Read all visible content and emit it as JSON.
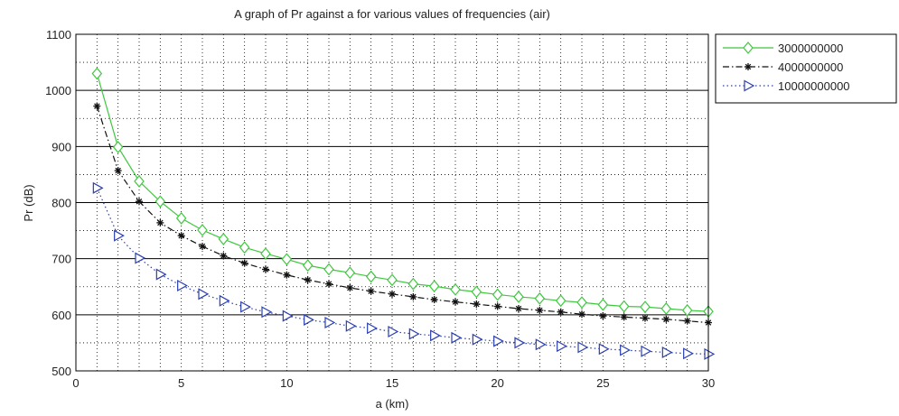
{
  "chart_data": {
    "type": "line",
    "title": "A graph of Pr against a for various values of frequencies (air)",
    "xlabel": "a (km)",
    "ylabel": "Pr (dB)",
    "xlim": [
      0,
      30
    ],
    "ylim": [
      500,
      1100
    ],
    "xticks": [
      0,
      5,
      10,
      15,
      20,
      25,
      30
    ],
    "yticks": [
      500,
      600,
      700,
      800,
      900,
      1000,
      1100
    ],
    "grid": true,
    "legend_position": "outside-top-right",
    "x": [
      1,
      2,
      3,
      4,
      5,
      6,
      7,
      8,
      9,
      10,
      11,
      12,
      13,
      14,
      15,
      16,
      17,
      18,
      19,
      20,
      21,
      22,
      23,
      24,
      25,
      26,
      27,
      28,
      29,
      30
    ],
    "series": [
      {
        "name": "3000000000",
        "color": "#3fc83f",
        "line_style": "solid",
        "marker": "diamond",
        "values": [
          1030,
          899,
          838,
          802,
          772,
          751,
          735,
          720,
          709,
          699,
          688,
          681,
          675,
          668,
          662,
          655,
          651,
          645,
          641,
          636,
          632,
          629,
          625,
          622,
          618,
          615,
          614,
          611,
          608,
          606
        ]
      },
      {
        "name": "4000000000",
        "color": "#111111",
        "line_style": "dashdot",
        "marker": "asterisk",
        "values": [
          972,
          857,
          802,
          764,
          741,
          722,
          705,
          692,
          681,
          671,
          662,
          655,
          648,
          642,
          637,
          632,
          627,
          623,
          619,
          615,
          611,
          608,
          605,
          601,
          598,
          596,
          594,
          592,
          589,
          586
        ]
      },
      {
        "name": "10000000000",
        "color": "#2b3fb0",
        "line_style": "dotted",
        "marker": "triangle-right",
        "values": [
          826,
          741,
          701,
          672,
          652,
          637,
          625,
          614,
          605,
          598,
          591,
          586,
          580,
          576,
          570,
          566,
          563,
          559,
          556,
          553,
          550,
          547,
          544,
          542,
          539,
          537,
          535,
          533,
          531,
          530
        ]
      }
    ]
  }
}
